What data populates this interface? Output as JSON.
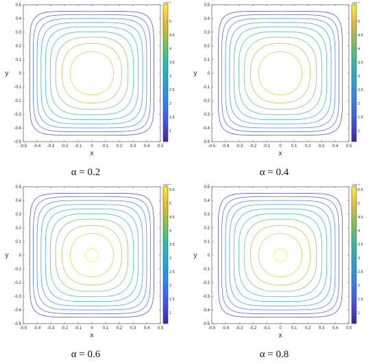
{
  "chart_data": [
    {
      "type": "contour",
      "caption": "α = 0.2",
      "xlabel": "x",
      "ylabel": "y",
      "xlim": [
        -0.5,
        0.5
      ],
      "ylim": [
        -0.5,
        0.5
      ],
      "xticks": [
        "-0.5",
        "-0.4",
        "-0.3",
        "-0.2",
        "-0.1",
        "0",
        "0.1",
        "0.2",
        "0.3",
        "0.4",
        "0.5"
      ],
      "yticks": [
        "-0.5",
        "-0.4",
        "-0.3",
        "-0.2",
        "-0.1",
        "0",
        "0.1",
        "0.2",
        "0.3",
        "0.4",
        "0.5"
      ],
      "colorbar": {
        "exponent": "×10⁻³",
        "ticks": [
          "1",
          "1.5",
          "2",
          "2.5",
          "3",
          "3.5",
          "4",
          "4.5",
          "5"
        ],
        "min": 0.6,
        "max": 5.6
      },
      "levels": [
        1,
        1.5,
        2,
        2.5,
        3,
        3.5,
        4,
        4.5,
        5
      ]
    },
    {
      "type": "contour",
      "caption": "α = 0.4",
      "xlabel": "x",
      "ylabel": "y",
      "xlim": [
        -0.5,
        0.5
      ],
      "ylim": [
        -0.5,
        0.5
      ],
      "xticks": [
        "-0.5",
        "-0.4",
        "-0.3",
        "-0.2",
        "-0.1",
        "0",
        "0.1",
        "0.2",
        "0.3",
        "0.4",
        "0.5"
      ],
      "yticks": [
        "-0.5",
        "-0.4",
        "-0.3",
        "-0.2",
        "-0.1",
        "0",
        "0.1",
        "0.2",
        "0.3",
        "0.4",
        "0.5"
      ],
      "colorbar": {
        "exponent": "×10⁻³",
        "ticks": [
          "1",
          "1.5",
          "2",
          "2.5",
          "3",
          "3.5",
          "4",
          "4.5",
          "5"
        ],
        "min": 0.6,
        "max": 5.6
      },
      "levels": [
        1,
        1.5,
        2,
        2.5,
        3,
        3.5,
        4,
        4.5,
        5
      ]
    },
    {
      "type": "contour",
      "caption": "α = 0.6",
      "xlabel": "x",
      "ylabel": "y",
      "xlim": [
        -0.5,
        0.5
      ],
      "ylim": [
        -0.5,
        0.5
      ],
      "xticks": [
        "-0.5",
        "-0.4",
        "-0.3",
        "-0.2",
        "-0.1",
        "0",
        "0.1",
        "0.2",
        "0.3",
        "0.4",
        "0.5"
      ],
      "yticks": [
        "-0.5",
        "-0.4",
        "-0.3",
        "-0.2",
        "-0.1",
        "0",
        "0.1",
        "0.2",
        "0.3",
        "0.4",
        "0.5"
      ],
      "colorbar": {
        "exponent": "×10⁻³",
        "ticks": [
          "1",
          "1.5",
          "2",
          "2.5",
          "3",
          "3.5",
          "4",
          "4.5",
          "5",
          "5.5"
        ],
        "min": 0.6,
        "max": 5.6
      },
      "levels": [
        1,
        1.5,
        2,
        2.5,
        3,
        3.5,
        4,
        4.5,
        5,
        5.5
      ]
    },
    {
      "type": "contour",
      "caption": "α = 0.8",
      "xlabel": "x",
      "ylabel": "y",
      "xlim": [
        -0.5,
        0.5
      ],
      "ylim": [
        -0.5,
        0.5
      ],
      "xticks": [
        "-0.5",
        "-0.4",
        "-0.3",
        "-0.2",
        "-0.1",
        "0",
        "0.1",
        "0.2",
        "0.3",
        "0.4",
        "0.5"
      ],
      "yticks": [
        "-0.5",
        "-0.4",
        "-0.3",
        "-0.2",
        "-0.1",
        "0",
        "0.1",
        "0.2",
        "0.3",
        "0.4",
        "0.5"
      ],
      "colorbar": {
        "exponent": "×10⁻³",
        "ticks": [
          "1",
          "1.5",
          "2",
          "2.5",
          "3",
          "3.5",
          "4",
          "4.5",
          "5",
          "5.5"
        ],
        "min": 0.6,
        "max": 5.6
      },
      "levels": [
        1,
        1.5,
        2,
        2.5,
        3,
        3.5,
        4,
        4.5,
        5,
        5.5
      ]
    }
  ]
}
